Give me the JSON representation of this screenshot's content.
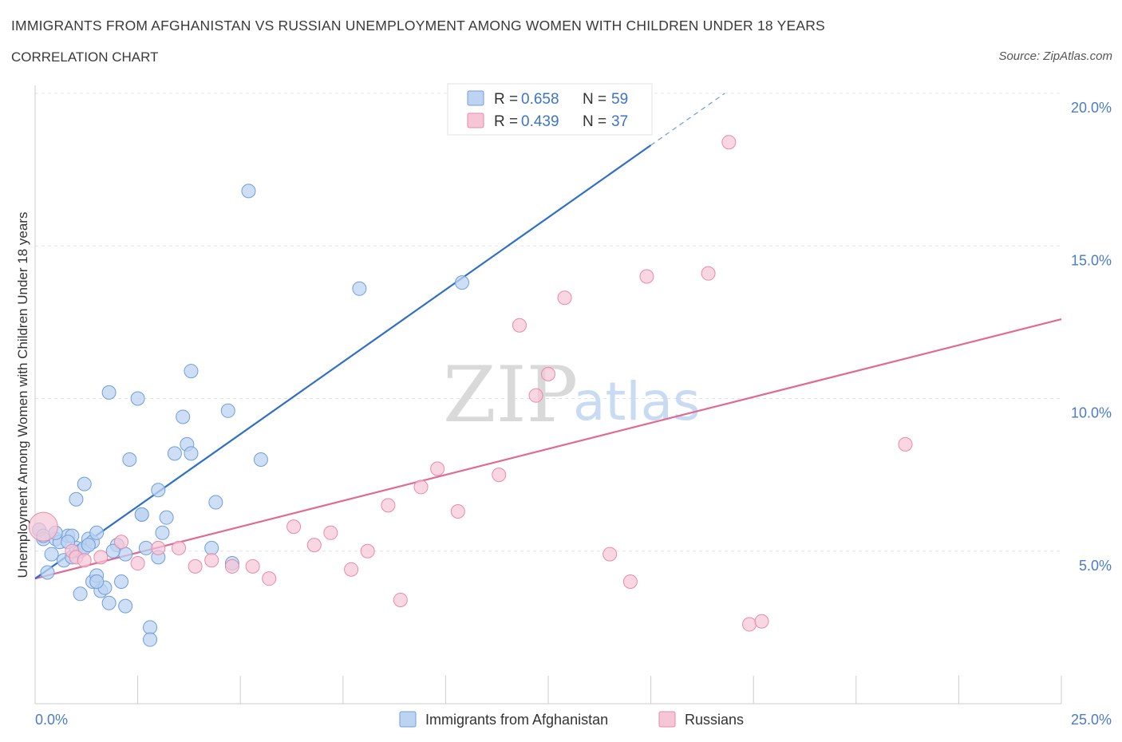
{
  "header": {
    "title": "IMMIGRANTS FROM AFGHANISTAN VS RUSSIAN UNEMPLOYMENT AMONG WOMEN WITH CHILDREN UNDER 18 YEARS",
    "subtitle": "CORRELATION CHART",
    "source": "Source: ZipAtlas.com"
  },
  "watermark": {
    "zip": "ZIP",
    "atlas": "atlas"
  },
  "legend": {
    "rows": [
      {
        "r_label": "R =",
        "r_value": "0.658",
        "n_label": "N =",
        "n_value": "59"
      },
      {
        "r_label": "R =",
        "r_value": "0.439",
        "n_label": "N =",
        "n_value": "37"
      }
    ]
  },
  "colors": {
    "afghanistan_fill": "#bcd3f2",
    "afghanistan_stroke": "#6f9fdc",
    "afghanistan_line": "#2f6fcb",
    "russians_fill": "#f7c6d6",
    "russians_stroke": "#e98aa9",
    "russians_line": "#e06a93"
  },
  "chart_data": {
    "type": "scatter",
    "title": "IMMIGRANTS FROM AFGHANISTAN VS RUSSIAN UNEMPLOYMENT AMONG WOMEN WITH CHILDREN UNDER 18 YEARS",
    "xlabel": "",
    "ylabel": "Unemployment Among Women with Children Under 18 years",
    "xlim": [
      0,
      25
    ],
    "ylim": [
      0,
      20
    ],
    "x_tick_labels": [
      "0.0%",
      "25.0%"
    ],
    "y_ticks": [
      5,
      10,
      15,
      20
    ],
    "y_tick_labels": [
      "5.0%",
      "10.0%",
      "15.0%",
      "20.0%"
    ],
    "grid": true,
    "legend_position": "top-center",
    "series": [
      {
        "name": "Immigrants from Afghanistan",
        "points": [
          [
            0.1,
            5.7
          ],
          [
            0.2,
            5.4
          ],
          [
            0.3,
            4.3
          ],
          [
            0.4,
            4.9
          ],
          [
            0.5,
            5.4
          ],
          [
            0.6,
            5.3
          ],
          [
            0.7,
            4.7
          ],
          [
            0.8,
            5.5
          ],
          [
            0.9,
            5.5
          ],
          [
            0.9,
            4.8
          ],
          [
            1.0,
            5.1
          ],
          [
            1.1,
            5.0
          ],
          [
            1.2,
            5.1
          ],
          [
            1.0,
            6.7
          ],
          [
            1.1,
            3.6
          ],
          [
            1.3,
            5.4
          ],
          [
            1.4,
            5.3
          ],
          [
            1.2,
            7.2
          ],
          [
            1.4,
            4.0
          ],
          [
            1.5,
            4.2
          ],
          [
            1.5,
            5.6
          ],
          [
            1.6,
            3.7
          ],
          [
            1.7,
            3.8
          ],
          [
            1.8,
            3.3
          ],
          [
            1.8,
            10.2
          ],
          [
            2.0,
            5.2
          ],
          [
            2.1,
            4.0
          ],
          [
            2.2,
            4.9
          ],
          [
            2.2,
            3.2
          ],
          [
            2.3,
            8.0
          ],
          [
            2.5,
            10.0
          ],
          [
            2.6,
            6.2
          ],
          [
            2.7,
            5.1
          ],
          [
            2.8,
            2.5
          ],
          [
            2.8,
            2.1
          ],
          [
            3.0,
            7.0
          ],
          [
            3.1,
            5.6
          ],
          [
            3.2,
            6.1
          ],
          [
            3.4,
            8.2
          ],
          [
            3.6,
            9.4
          ],
          [
            3.7,
            8.5
          ],
          [
            3.8,
            8.2
          ],
          [
            3.8,
            10.9
          ],
          [
            4.3,
            5.1
          ],
          [
            4.4,
            6.6
          ],
          [
            4.7,
            9.6
          ],
          [
            4.8,
            4.6
          ],
          [
            5.2,
            16.8
          ],
          [
            5.5,
            8.0
          ],
          [
            7.9,
            13.6
          ],
          [
            10.4,
            13.8
          ],
          [
            0.2,
            5.5
          ],
          [
            0.8,
            5.3
          ],
          [
            1.9,
            5.0
          ],
          [
            2.6,
            6.2
          ],
          [
            3.0,
            4.8
          ],
          [
            1.5,
            4.0
          ],
          [
            0.5,
            5.6
          ],
          [
            1.3,
            5.2
          ]
        ],
        "trendline": {
          "x": [
            0.0,
            15.0
          ],
          "y": [
            4.1,
            18.3
          ],
          "dashed_extension": {
            "x": [
              15.0,
              16.8
            ],
            "y": [
              18.3,
              20.0
            ]
          }
        }
      },
      {
        "name": "Russians",
        "points": [
          [
            0.2,
            5.8
          ],
          [
            0.9,
            5.0
          ],
          [
            1.0,
            4.8
          ],
          [
            1.2,
            4.7
          ],
          [
            1.6,
            4.8
          ],
          [
            2.1,
            5.3
          ],
          [
            2.5,
            4.6
          ],
          [
            3.0,
            5.1
          ],
          [
            3.5,
            5.1
          ],
          [
            3.9,
            4.5
          ],
          [
            4.3,
            4.7
          ],
          [
            4.8,
            4.5
          ],
          [
            5.3,
            4.5
          ],
          [
            5.7,
            4.1
          ],
          [
            6.3,
            5.8
          ],
          [
            6.8,
            5.2
          ],
          [
            7.2,
            5.6
          ],
          [
            7.7,
            4.4
          ],
          [
            8.1,
            5.0
          ],
          [
            8.6,
            6.5
          ],
          [
            8.9,
            3.4
          ],
          [
            9.4,
            7.1
          ],
          [
            9.8,
            7.7
          ],
          [
            10.3,
            6.3
          ],
          [
            11.3,
            7.5
          ],
          [
            11.8,
            12.4
          ],
          [
            12.2,
            10.1
          ],
          [
            12.5,
            10.8
          ],
          [
            12.9,
            13.3
          ],
          [
            14.0,
            4.9
          ],
          [
            14.5,
            4.0
          ],
          [
            14.9,
            14.0
          ],
          [
            16.4,
            14.1
          ],
          [
            16.9,
            18.4
          ],
          [
            17.4,
            2.6
          ],
          [
            17.7,
            2.7
          ],
          [
            21.2,
            8.5
          ]
        ],
        "trendline": {
          "x": [
            0.0,
            25.0
          ],
          "y": [
            4.1,
            12.6
          ]
        }
      }
    ]
  },
  "bottom_legend": {
    "items": [
      "Immigrants from Afghanistan",
      "Russians"
    ]
  }
}
